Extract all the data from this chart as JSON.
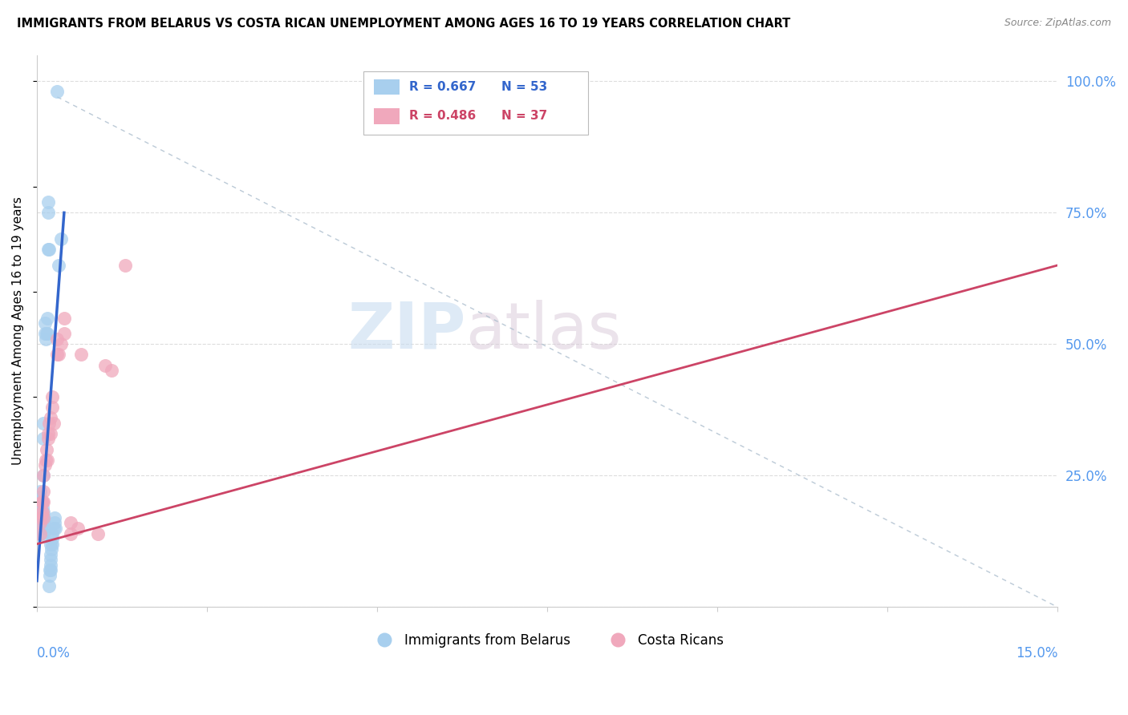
{
  "title": "IMMIGRANTS FROM BELARUS VS COSTA RICAN UNEMPLOYMENT AMONG AGES 16 TO 19 YEARS CORRELATION CHART",
  "source": "Source: ZipAtlas.com",
  "ylabel": "Unemployment Among Ages 16 to 19 years",
  "legend_label_blue": "Immigrants from Belarus",
  "legend_label_pink": "Costa Ricans",
  "blue_color": "#A8CFEE",
  "pink_color": "#F0A8BC",
  "blue_line_color": "#3366CC",
  "pink_line_color": "#CC4466",
  "ref_line_color": "#AABCCC",
  "xmin": 0.0,
  "xmax": 0.15,
  "ymin": 0.0,
  "ymax": 1.05,
  "right_yticks": [
    0.0,
    0.25,
    0.5,
    0.75,
    1.0
  ],
  "right_yticklabels": [
    "",
    "25.0%",
    "50.0%",
    "75.0%",
    "100.0%"
  ],
  "blue_scatter": [
    [
      0.0005,
      0.14
    ],
    [
      0.0005,
      0.16
    ],
    [
      0.0005,
      0.17
    ],
    [
      0.0005,
      0.19
    ],
    [
      0.0005,
      0.2
    ],
    [
      0.0005,
      0.21
    ],
    [
      0.0005,
      0.22
    ],
    [
      0.0006,
      0.15
    ],
    [
      0.0006,
      0.17
    ],
    [
      0.0006,
      0.18
    ],
    [
      0.0006,
      0.2
    ],
    [
      0.0007,
      0.16
    ],
    [
      0.0007,
      0.18
    ],
    [
      0.0007,
      0.2
    ],
    [
      0.0008,
      0.17
    ],
    [
      0.0008,
      0.19
    ],
    [
      0.0009,
      0.14
    ],
    [
      0.0009,
      0.16
    ],
    [
      0.0009,
      0.18
    ],
    [
      0.001,
      0.15
    ],
    [
      0.001,
      0.17
    ],
    [
      0.001,
      0.25
    ],
    [
      0.001,
      0.32
    ],
    [
      0.001,
      0.35
    ],
    [
      0.0012,
      0.52
    ],
    [
      0.0012,
      0.54
    ],
    [
      0.0013,
      0.51
    ],
    [
      0.0014,
      0.52
    ],
    [
      0.0015,
      0.52
    ],
    [
      0.0015,
      0.55
    ],
    [
      0.0016,
      0.75
    ],
    [
      0.0016,
      0.77
    ],
    [
      0.0017,
      0.68
    ],
    [
      0.0018,
      0.68
    ],
    [
      0.0018,
      0.04
    ],
    [
      0.0019,
      0.06
    ],
    [
      0.0019,
      0.07
    ],
    [
      0.002,
      0.07
    ],
    [
      0.002,
      0.08
    ],
    [
      0.002,
      0.09
    ],
    [
      0.002,
      0.1
    ],
    [
      0.002,
      0.12
    ],
    [
      0.0021,
      0.11
    ],
    [
      0.0022,
      0.13
    ],
    [
      0.0022,
      0.14
    ],
    [
      0.0023,
      0.12
    ],
    [
      0.0025,
      0.15
    ],
    [
      0.0026,
      0.16
    ],
    [
      0.0026,
      0.17
    ],
    [
      0.0027,
      0.15
    ],
    [
      0.003,
      0.98
    ],
    [
      0.0032,
      0.65
    ],
    [
      0.0035,
      0.7
    ]
  ],
  "pink_scatter": [
    [
      0.0005,
      0.14
    ],
    [
      0.0005,
      0.16
    ],
    [
      0.0006,
      0.17
    ],
    [
      0.0007,
      0.18
    ],
    [
      0.0007,
      0.2
    ],
    [
      0.0008,
      0.18
    ],
    [
      0.0008,
      0.2
    ],
    [
      0.0009,
      0.17
    ],
    [
      0.001,
      0.2
    ],
    [
      0.001,
      0.22
    ],
    [
      0.001,
      0.25
    ],
    [
      0.0012,
      0.27
    ],
    [
      0.0013,
      0.28
    ],
    [
      0.0014,
      0.3
    ],
    [
      0.0015,
      0.28
    ],
    [
      0.0016,
      0.32
    ],
    [
      0.0017,
      0.33
    ],
    [
      0.0018,
      0.35
    ],
    [
      0.002,
      0.33
    ],
    [
      0.002,
      0.36
    ],
    [
      0.0022,
      0.38
    ],
    [
      0.0023,
      0.4
    ],
    [
      0.0025,
      0.35
    ],
    [
      0.003,
      0.48
    ],
    [
      0.003,
      0.51
    ],
    [
      0.0032,
      0.48
    ],
    [
      0.0035,
      0.5
    ],
    [
      0.004,
      0.52
    ],
    [
      0.004,
      0.55
    ],
    [
      0.005,
      0.14
    ],
    [
      0.005,
      0.16
    ],
    [
      0.006,
      0.15
    ],
    [
      0.0065,
      0.48
    ],
    [
      0.009,
      0.14
    ],
    [
      0.01,
      0.46
    ],
    [
      0.011,
      0.45
    ],
    [
      0.013,
      0.65
    ]
  ],
  "watermark_zip": "ZIP",
  "watermark_atlas": "atlas",
  "background_color": "#FFFFFF",
  "grid_color": "#DDDDDD"
}
